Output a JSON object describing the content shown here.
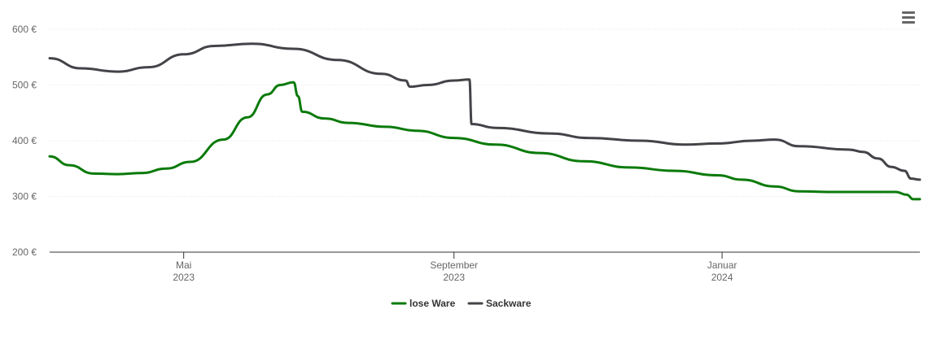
{
  "colors": {
    "lose_ware": "#0a7a0a",
    "sackware": "#434348",
    "grid": "#e6e6e6",
    "axis": "#333333"
  },
  "menu": {
    "icon": "hamburger-menu-icon"
  },
  "chart_data": {
    "type": "line",
    "title": "",
    "xlabel": "",
    "ylabel": "",
    "grid": true,
    "legend": "bottom-center",
    "ylim": [
      200,
      600
    ],
    "xlim": [
      "2023-03-01",
      "2024-03-31"
    ],
    "yticks": [
      {
        "value": 200,
        "label": "200 €"
      },
      {
        "value": 300,
        "label": "300 €"
      },
      {
        "value": 400,
        "label": "400 €"
      },
      {
        "value": 500,
        "label": "500 €"
      },
      {
        "value": 600,
        "label": "600 €"
      }
    ],
    "xticks": [
      {
        "date": "2023-05-01",
        "line1": "Mai",
        "line2": "2023"
      },
      {
        "date": "2023-09-01",
        "line1": "September",
        "line2": "2023"
      },
      {
        "date": "2024-01-01",
        "line1": "Januar",
        "line2": "2024"
      }
    ],
    "series": [
      {
        "name": "lose Ware",
        "color": "#0a7a0a",
        "points": [
          [
            "2023-03-01",
            372
          ],
          [
            "2023-03-10",
            356
          ],
          [
            "2023-03-21",
            341
          ],
          [
            "2023-04-01",
            340
          ],
          [
            "2023-04-12",
            342
          ],
          [
            "2023-04-23",
            350
          ],
          [
            "2023-05-04",
            362
          ],
          [
            "2023-05-19",
            402
          ],
          [
            "2023-05-30",
            442
          ],
          [
            "2023-06-08",
            483
          ],
          [
            "2023-06-14",
            500
          ],
          [
            "2023-06-20",
            505
          ],
          [
            "2023-06-22",
            480
          ],
          [
            "2023-06-24",
            452
          ],
          [
            "2023-07-04",
            440
          ],
          [
            "2023-07-15",
            432
          ],
          [
            "2023-08-01",
            425
          ],
          [
            "2023-08-15",
            418
          ],
          [
            "2023-09-01",
            405
          ],
          [
            "2023-09-20",
            393
          ],
          [
            "2023-10-10",
            378
          ],
          [
            "2023-10-30",
            363
          ],
          [
            "2023-11-20",
            352
          ],
          [
            "2023-12-10",
            346
          ],
          [
            "2023-12-30",
            338
          ],
          [
            "2024-01-10",
            330
          ],
          [
            "2024-01-25",
            318
          ],
          [
            "2024-02-05",
            309
          ],
          [
            "2024-02-20",
            308
          ],
          [
            "2024-03-20",
            308
          ],
          [
            "2024-03-25",
            303
          ],
          [
            "2024-03-28",
            295
          ],
          [
            "2024-03-31",
            295
          ]
        ]
      },
      {
        "name": "Sackware",
        "color": "#434348",
        "points": [
          [
            "2023-03-01",
            548
          ],
          [
            "2023-03-15",
            530
          ],
          [
            "2023-04-01",
            524
          ],
          [
            "2023-04-15",
            532
          ],
          [
            "2023-05-01",
            555
          ],
          [
            "2023-05-15",
            570
          ],
          [
            "2023-06-01",
            574
          ],
          [
            "2023-06-20",
            565
          ],
          [
            "2023-07-10",
            545
          ],
          [
            "2023-07-30",
            520
          ],
          [
            "2023-08-10",
            508
          ],
          [
            "2023-08-12",
            497
          ],
          [
            "2023-08-20",
            500
          ],
          [
            "2023-09-01",
            508
          ],
          [
            "2023-09-08",
            510
          ],
          [
            "2023-09-09",
            430
          ],
          [
            "2023-09-20",
            423
          ],
          [
            "2023-10-15",
            413
          ],
          [
            "2023-11-01",
            405
          ],
          [
            "2023-11-25",
            400
          ],
          [
            "2023-12-15",
            393
          ],
          [
            "2023-12-30",
            395
          ],
          [
            "2024-01-15",
            400
          ],
          [
            "2024-01-25",
            402
          ],
          [
            "2024-02-05",
            390
          ],
          [
            "2024-02-28",
            384
          ],
          [
            "2024-03-05",
            380
          ],
          [
            "2024-03-12",
            368
          ],
          [
            "2024-03-18",
            353
          ],
          [
            "2024-03-24",
            346
          ],
          [
            "2024-03-27",
            332
          ],
          [
            "2024-03-31",
            330
          ]
        ]
      }
    ]
  }
}
